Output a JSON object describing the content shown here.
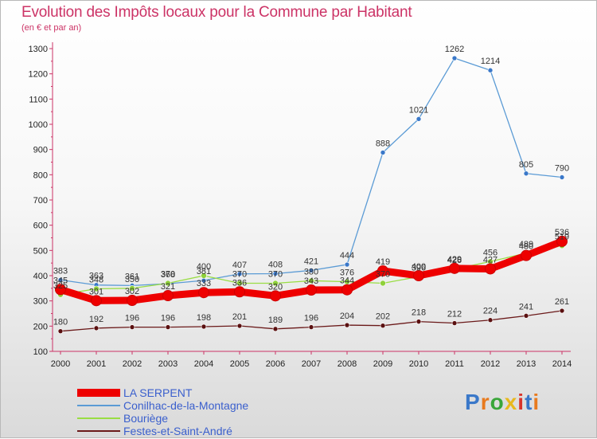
{
  "title": "Evolution des Impôts locaux pour la Commune par Habitant",
  "subtitle": "(en € et par an)",
  "logo": "Proxiti",
  "chart_data": {
    "type": "line",
    "x": [
      "2000",
      "2001",
      "2002",
      "2003",
      "2004",
      "2005",
      "2006",
      "2007",
      "2008",
      "2009",
      "2010",
      "2011",
      "2012",
      "2013",
      "2014"
    ],
    "ylim": [
      100,
      1300
    ],
    "yticks": [
      100,
      200,
      300,
      400,
      500,
      600,
      700,
      800,
      900,
      1000,
      1100,
      1200,
      1300
    ],
    "grid": false,
    "series": [
      {
        "name": "LA SERPENT",
        "color": "#ee0000",
        "values": [
          345,
          301,
          302,
          321,
          333,
          336,
          320,
          343,
          344,
          419,
          400,
          429,
          427,
          480,
          536
        ]
      },
      {
        "name": "Conilhac-de-la-Montagne",
        "color": "#5b9bd5",
        "values": [
          383,
          363,
          361,
          368,
          381,
          407,
          408,
          421,
          444,
          888,
          1021,
          1262,
          1214,
          805,
          790
        ]
      },
      {
        "name": "Bouriège",
        "color": "#99dd44",
        "values": [
          325,
          348,
          350,
          370,
          400,
          370,
          370,
          380,
          376,
          370,
          396,
          426,
          456,
          489,
          519
        ]
      },
      {
        "name": "Festes-et-Saint-André",
        "color": "#6b1a1a",
        "values": [
          180,
          192,
          196,
          196,
          198,
          201,
          189,
          196,
          204,
          202,
          218,
          212,
          224,
          241,
          261
        ]
      }
    ]
  }
}
